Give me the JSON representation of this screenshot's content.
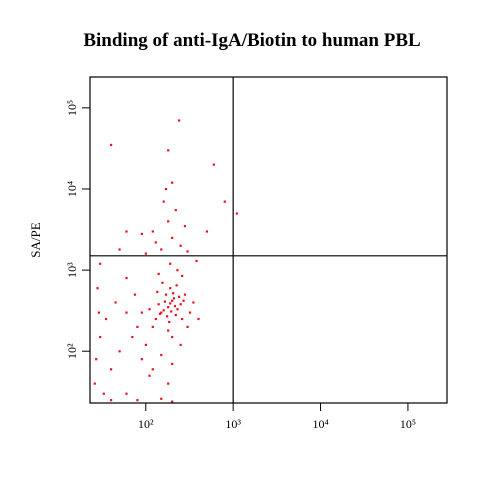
{
  "chart_data": {
    "type": "scatter",
    "title": "Binding of anti-IgA/Biotin to human PBL",
    "y_label": "SA/PE",
    "xscale": "log",
    "yscale": "log",
    "color": "#e3121b",
    "xlim": [
      23,
      280000
    ],
    "ylim": [
      23,
      240000
    ],
    "xticks": [
      {
        "value": 100,
        "label": "10²"
      },
      {
        "value": 1000,
        "label": "10³"
      },
      {
        "value": 10000,
        "label": "10⁴"
      },
      {
        "value": 100000,
        "label": "10⁵"
      }
    ],
    "yticks": [
      {
        "value": 100,
        "label": "10²"
      },
      {
        "value": 1000,
        "label": "10³"
      },
      {
        "value": 10000,
        "label": "10⁴"
      },
      {
        "value": 100000,
        "label": "10⁵"
      }
    ],
    "quadrant_x": 1000,
    "quadrant_y": 1500,
    "x": [
      150,
      180,
      200,
      220,
      170,
      130,
      250,
      190,
      160,
      210,
      140,
      230,
      175,
      195,
      205,
      165,
      185,
      215,
      145,
      240,
      120,
      260,
      155,
      225,
      135,
      180,
      200,
      110,
      270,
      190,
      100,
      90,
      80,
      70,
      60,
      50,
      40,
      120,
      150,
      200,
      180,
      250,
      300,
      320,
      280,
      350,
      400,
      110,
      90,
      75,
      60,
      45,
      35,
      30,
      28,
      30,
      27,
      26,
      29,
      33,
      40,
      80,
      150,
      200,
      60,
      150,
      200,
      120,
      180,
      250,
      100,
      220,
      160,
      280,
      130,
      90,
      300,
      170,
      60,
      50,
      200,
      140,
      230,
      190,
      260,
      380,
      500,
      800,
      1100,
      240,
      180,
      40,
      600
    ],
    "y": [
      300,
      350,
      420,
      280,
      500,
      250,
      380,
      600,
      320,
      450,
      380,
      330,
      270,
      310,
      520,
      410,
      230,
      360,
      290,
      470,
      200,
      250,
      700,
      650,
      540,
      180,
      150,
      330,
      420,
      390,
      120,
      80,
      200,
      150,
      300,
      100,
      60,
      60,
      90,
      70,
      40,
      120,
      200,
      300,
      500,
      400,
      250,
      50,
      300,
      500,
      800,
      400,
      250,
      150,
      600,
      1200,
      80,
      40,
      300,
      30,
      25,
      25,
      26,
      24,
      30,
      1800,
      2500,
      3000,
      4000,
      2000,
      1600,
      5500,
      7000,
      3500,
      2200,
      2800,
      1700,
      10000,
      3000,
      1800,
      12000,
      900,
      1000,
      1200,
      850,
      1300,
      3000,
      7000,
      5000,
      70000,
      30000,
      35000,
      20000
    ]
  }
}
